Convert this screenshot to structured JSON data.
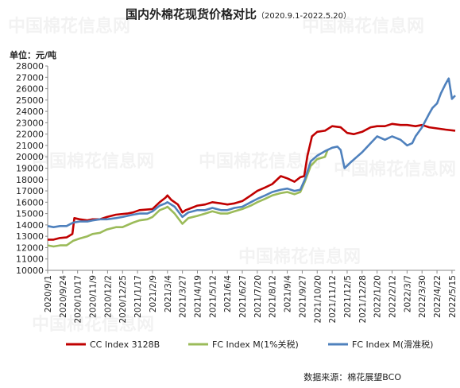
{
  "chart_data": {
    "type": "line",
    "title": "国内外棉花现货价格对比",
    "title_suffix": "（2020.9.1-2022.5.20）",
    "unit_label": "单位：元/吨",
    "source": "数据来源：棉花展望BCO",
    "watermark": "中国棉花信息网 www.cottonchina.org.cn",
    "ylim": [
      10000,
      28000
    ],
    "y_ticks": [
      10000,
      11000,
      12000,
      13000,
      14000,
      15000,
      16000,
      17000,
      18000,
      19000,
      20000,
      21000,
      22000,
      23000,
      24000,
      25000,
      26000,
      27000,
      28000
    ],
    "x_ticks": [
      "2020/9/1",
      "2020/9/24",
      "2020/10/17",
      "2020/11/9",
      "2020/12/2",
      "2020/12/25",
      "2021/1/17",
      "2021/2/9",
      "2021/3/4",
      "2021/3/27",
      "2021/4/19",
      "2021/5/12",
      "2021/6/4",
      "2021/6/27",
      "2021/7/20",
      "2021/8/12",
      "2021/9/4",
      "2021/9/27",
      "2021/10/20",
      "2021/11/12",
      "2021/12/5",
      "2021/12/28",
      "2022/1/20",
      "2022/2/12",
      "2022/3/7",
      "2022/3/30",
      "2022/4/22",
      "2022/5/15"
    ],
    "x_range": [
      "2020/9/1",
      "2022/5/20"
    ],
    "legend_position": "bottom",
    "grid": false,
    "series": [
      {
        "name": "CC Index 3128B",
        "color": "#c00000",
        "points": [
          [
            "2020/9/1",
            12700
          ],
          [
            "2020/9/10",
            12700
          ],
          [
            "2020/9/20",
            12850
          ],
          [
            "2020/9/30",
            12900
          ],
          [
            "2020/10/9",
            13200
          ],
          [
            "2020/10/12",
            14600
          ],
          [
            "2020/10/20",
            14500
          ],
          [
            "2020/11/1",
            14400
          ],
          [
            "2020/11/9",
            14500
          ],
          [
            "2020/11/20",
            14500
          ],
          [
            "2020/12/1",
            14700
          ],
          [
            "2020/12/15",
            14900
          ],
          [
            "2021/1/1",
            15000
          ],
          [
            "2021/1/10",
            15100
          ],
          [
            "2021/1/20",
            15300
          ],
          [
            "2021/2/9",
            15400
          ],
          [
            "2021/2/20",
            16000
          ],
          [
            "2021/3/1",
            16400
          ],
          [
            "2021/3/4",
            16600
          ],
          [
            "2021/3/10",
            16200
          ],
          [
            "2021/3/20",
            15800
          ],
          [
            "2021/3/27",
            15100
          ],
          [
            "2021/4/1",
            15300
          ],
          [
            "2021/4/10",
            15500
          ],
          [
            "2021/4/19",
            15700
          ],
          [
            "2021/5/1",
            15800
          ],
          [
            "2021/5/12",
            16000
          ],
          [
            "2021/5/25",
            15900
          ],
          [
            "2021/6/4",
            15800
          ],
          [
            "2021/6/15",
            15900
          ],
          [
            "2021/6/27",
            16100
          ],
          [
            "2021/7/10",
            16600
          ],
          [
            "2021/7/20",
            17000
          ],
          [
            "2021/8/1",
            17300
          ],
          [
            "2021/8/12",
            17600
          ],
          [
            "2021/8/25",
            18300
          ],
          [
            "2021/9/4",
            18100
          ],
          [
            "2021/9/15",
            17800
          ],
          [
            "2021/9/24",
            18200
          ],
          [
            "2021/9/30",
            18300
          ],
          [
            "2021/10/5",
            20100
          ],
          [
            "2021/10/12",
            21800
          ],
          [
            "2021/10/20",
            22200
          ],
          [
            "2021/11/1",
            22300
          ],
          [
            "2021/11/12",
            22700
          ],
          [
            "2021/11/25",
            22600
          ],
          [
            "2021/12/5",
            22100
          ],
          [
            "2021/12/15",
            22000
          ],
          [
            "2021/12/28",
            22200
          ],
          [
            "2022/1/10",
            22600
          ],
          [
            "2022/1/20",
            22700
          ],
          [
            "2022/2/1",
            22700
          ],
          [
            "2022/2/12",
            22900
          ],
          [
            "2022/2/25",
            22800
          ],
          [
            "2022/3/7",
            22800
          ],
          [
            "2022/3/20",
            22700
          ],
          [
            "2022/3/30",
            22800
          ],
          [
            "2022/4/10",
            22600
          ],
          [
            "2022/4/22",
            22500
          ],
          [
            "2022/5/5",
            22400
          ],
          [
            "2022/5/20",
            22300
          ]
        ]
      },
      {
        "name": "FC Index M(1%关税)",
        "color": "#9bbb59",
        "points": [
          [
            "2020/9/1",
            12200
          ],
          [
            "2020/9/10",
            12100
          ],
          [
            "2020/9/20",
            12200
          ],
          [
            "2020/9/30",
            12200
          ],
          [
            "2020/10/10",
            12600
          ],
          [
            "2020/10/20",
            12800
          ],
          [
            "2020/11/1",
            13000
          ],
          [
            "2020/11/9",
            13200
          ],
          [
            "2020/11/20",
            13300
          ],
          [
            "2020/12/1",
            13600
          ],
          [
            "2020/12/15",
            13800
          ],
          [
            "2020/12/25",
            13800
          ],
          [
            "2021/1/10",
            14200
          ],
          [
            "2021/1/20",
            14400
          ],
          [
            "2021/2/1",
            14500
          ],
          [
            "2021/2/9",
            14700
          ],
          [
            "2021/2/20",
            15300
          ],
          [
            "2021/3/1",
            15500
          ],
          [
            "2021/3/4",
            15600
          ],
          [
            "2021/3/15",
            15000
          ],
          [
            "2021/3/27",
            14100
          ],
          [
            "2021/4/5",
            14600
          ],
          [
            "2021/4/19",
            14800
          ],
          [
            "2021/5/1",
            15000
          ],
          [
            "2021/5/12",
            15200
          ],
          [
            "2021/5/25",
            15000
          ],
          [
            "2021/6/4",
            15000
          ],
          [
            "2021/6/15",
            15200
          ],
          [
            "2021/6/27",
            15400
          ],
          [
            "2021/7/10",
            15700
          ],
          [
            "2021/7/20",
            16000
          ],
          [
            "2021/8/1",
            16300
          ],
          [
            "2021/8/12",
            16600
          ],
          [
            "2021/8/25",
            16800
          ],
          [
            "2021/9/4",
            16900
          ],
          [
            "2021/9/15",
            16700
          ],
          [
            "2021/9/24",
            16900
          ],
          [
            "2021/10/1",
            17800
          ],
          [
            "2021/10/10",
            19200
          ],
          [
            "2021/10/20",
            19800
          ],
          [
            "2021/11/1",
            20000
          ],
          [
            "2021/11/5",
            20600
          ]
        ]
      },
      {
        "name": "FC Index M(滑准税)",
        "color": "#4f81bd",
        "points": [
          [
            "2020/9/1",
            13900
          ],
          [
            "2020/9/10",
            13800
          ],
          [
            "2020/9/20",
            13900
          ],
          [
            "2020/9/30",
            13900
          ],
          [
            "2020/10/10",
            14200
          ],
          [
            "2020/10/20",
            14300
          ],
          [
            "2020/11/1",
            14300
          ],
          [
            "2020/11/9",
            14400
          ],
          [
            "2020/11/20",
            14500
          ],
          [
            "2020/12/1",
            14500
          ],
          [
            "2020/12/15",
            14600
          ],
          [
            "2020/12/25",
            14700
          ],
          [
            "2021/1/10",
            14900
          ],
          [
            "2021/1/20",
            15000
          ],
          [
            "2021/2/1",
            15000
          ],
          [
            "2021/2/9",
            15200
          ],
          [
            "2021/2/20",
            15700
          ],
          [
            "2021/3/1",
            15900
          ],
          [
            "2021/3/4",
            16000
          ],
          [
            "2021/3/15",
            15600
          ],
          [
            "2021/3/27",
            14700
          ],
          [
            "2021/4/5",
            15100
          ],
          [
            "2021/4/19",
            15300
          ],
          [
            "2021/5/1",
            15300
          ],
          [
            "2021/5/12",
            15500
          ],
          [
            "2021/5/25",
            15300
          ],
          [
            "2021/6/4",
            15300
          ],
          [
            "2021/6/15",
            15500
          ],
          [
            "2021/6/27",
            15600
          ],
          [
            "2021/7/10",
            16000
          ],
          [
            "2021/7/20",
            16300
          ],
          [
            "2021/8/1",
            16600
          ],
          [
            "2021/8/12",
            16900
          ],
          [
            "2021/8/25",
            17100
          ],
          [
            "2021/9/4",
            17200
          ],
          [
            "2021/9/15",
            17000
          ],
          [
            "2021/9/24",
            17100
          ],
          [
            "2021/10/1",
            18000
          ],
          [
            "2021/10/10",
            19600
          ],
          [
            "2021/10/20",
            20100
          ],
          [
            "2021/11/1",
            20500
          ],
          [
            "2021/11/12",
            20800
          ],
          [
            "2021/11/20",
            20900
          ],
          [
            "2021/11/25",
            20600
          ],
          [
            "2021/12/1",
            19000
          ],
          [
            "2021/12/10",
            19500
          ],
          [
            "2021/12/20",
            20000
          ],
          [
            "2021/12/28",
            20400
          ],
          [
            "2022/1/10",
            21200
          ],
          [
            "2022/1/20",
            21800
          ],
          [
            "2022/2/1",
            21500
          ],
          [
            "2022/2/12",
            21800
          ],
          [
            "2022/2/25",
            21500
          ],
          [
            "2022/3/7",
            21000
          ],
          [
            "2022/3/15",
            21200
          ],
          [
            "2022/3/20",
            21800
          ],
          [
            "2022/3/30",
            22600
          ],
          [
            "2022/4/10",
            23800
          ],
          [
            "2022/4/15",
            24300
          ],
          [
            "2022/4/22",
            24700
          ],
          [
            "2022/4/28",
            25600
          ],
          [
            "2022/5/5",
            26400
          ],
          [
            "2022/5/10",
            26900
          ],
          [
            "2022/5/15",
            25100
          ],
          [
            "2022/5/20",
            25400
          ]
        ]
      }
    ]
  }
}
